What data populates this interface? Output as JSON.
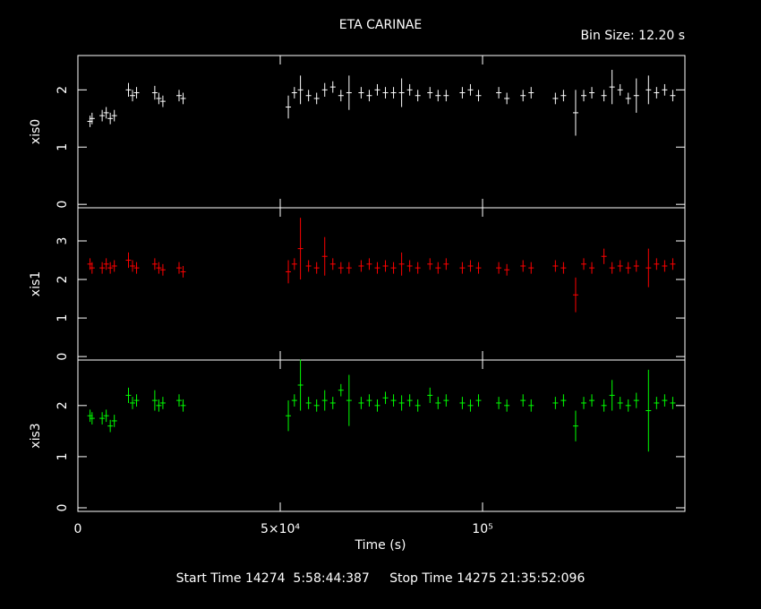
{
  "title": "ETA CARINAE",
  "bin_size": "Bin Size: 12.20 s",
  "x_label": "Time (s)",
  "footer": "Start Time 14274  5:58:44:387     Stop Time 14275 21:35:52:096",
  "chart_data": [
    {
      "type": "scatter",
      "y_label": "xis0",
      "x": [
        3000,
        3500,
        6000,
        7000,
        8000,
        9000,
        12500,
        13500,
        14500,
        19000,
        20000,
        21000,
        25000,
        26000,
        52000,
        53500,
        55000,
        57000,
        59000,
        61000,
        63000,
        65000,
        67000,
        70000,
        72000,
        74000,
        76000,
        78000,
        80000,
        82000,
        84000,
        87000,
        89000,
        91000,
        95000,
        97000,
        99000,
        104000,
        106000,
        110000,
        112000,
        118000,
        120000,
        123000,
        125000,
        127000,
        130000,
        132000,
        134000,
        136000,
        138000,
        141000,
        143000,
        145000,
        147000
      ],
      "series": [
        {
          "color": "#ffffff",
          "values": [
            1.45,
            1.5,
            1.55,
            1.6,
            1.5,
            1.55,
            2.0,
            1.9,
            1.95,
            1.95,
            1.85,
            1.8,
            1.9,
            1.85,
            1.7,
            1.95,
            2.0,
            1.9,
            1.85,
            2.0,
            2.05,
            1.9,
            1.95,
            1.95,
            1.9,
            2.0,
            1.95,
            1.95,
            1.95,
            2.0,
            1.9,
            1.95,
            1.9,
            1.9,
            1.95,
            2.0,
            1.9,
            1.95,
            1.85,
            1.9,
            1.95,
            1.85,
            1.9,
            1.6,
            1.9,
            1.95,
            1.9,
            2.05,
            2.0,
            1.85,
            1.9,
            2.0,
            1.95,
            2.0,
            1.9
          ],
          "errors": [
            0.1,
            0.1,
            0.1,
            0.1,
            0.1,
            0.1,
            0.12,
            0.1,
            0.1,
            0.12,
            0.1,
            0.1,
            0.1,
            0.1,
            0.2,
            0.1,
            0.25,
            0.1,
            0.1,
            0.12,
            0.1,
            0.1,
            0.3,
            0.1,
            0.1,
            0.1,
            0.1,
            0.1,
            0.25,
            0.1,
            0.1,
            0.1,
            0.1,
            0.1,
            0.1,
            0.1,
            0.1,
            0.1,
            0.1,
            0.1,
            0.1,
            0.1,
            0.1,
            0.4,
            0.1,
            0.1,
            0.1,
            0.3,
            0.1,
            0.1,
            0.3,
            0.25,
            0.1,
            0.1,
            0.1
          ]
        }
      ],
      "ylim": [
        -0.06,
        2.6
      ],
      "yticks": [
        0,
        1,
        2
      ]
    },
    {
      "type": "scatter",
      "y_label": "xis1",
      "x": [
        3000,
        3500,
        6000,
        7000,
        8000,
        9000,
        12500,
        13500,
        14500,
        19000,
        20000,
        21000,
        25000,
        26000,
        52000,
        53500,
        55000,
        57000,
        59000,
        61000,
        63000,
        65000,
        67000,
        70000,
        72000,
        74000,
        76000,
        78000,
        80000,
        82000,
        84000,
        87000,
        89000,
        91000,
        95000,
        97000,
        99000,
        104000,
        106000,
        110000,
        112000,
        118000,
        120000,
        123000,
        125000,
        127000,
        130000,
        132000,
        134000,
        136000,
        138000,
        141000,
        143000,
        145000,
        147000
      ],
      "series": [
        {
          "color": "#ff0000",
          "values": [
            2.4,
            2.3,
            2.3,
            2.4,
            2.3,
            2.35,
            2.5,
            2.35,
            2.3,
            2.4,
            2.3,
            2.25,
            2.3,
            2.2,
            2.2,
            2.4,
            2.8,
            2.35,
            2.3,
            2.6,
            2.4,
            2.3,
            2.3,
            2.35,
            2.4,
            2.3,
            2.35,
            2.3,
            2.4,
            2.35,
            2.3,
            2.4,
            2.3,
            2.4,
            2.3,
            2.35,
            2.3,
            2.3,
            2.25,
            2.35,
            2.3,
            2.35,
            2.3,
            1.6,
            2.4,
            2.3,
            2.6,
            2.3,
            2.35,
            2.3,
            2.35,
            2.3,
            2.4,
            2.35,
            2.4
          ],
          "errors": [
            0.15,
            0.15,
            0.15,
            0.15,
            0.15,
            0.15,
            0.2,
            0.15,
            0.15,
            0.15,
            0.15,
            0.15,
            0.15,
            0.15,
            0.3,
            0.15,
            0.8,
            0.15,
            0.15,
            0.5,
            0.15,
            0.15,
            0.15,
            0.15,
            0.15,
            0.15,
            0.15,
            0.15,
            0.3,
            0.15,
            0.15,
            0.15,
            0.15,
            0.15,
            0.15,
            0.15,
            0.15,
            0.15,
            0.15,
            0.15,
            0.15,
            0.15,
            0.15,
            0.45,
            0.15,
            0.15,
            0.2,
            0.15,
            0.15,
            0.15,
            0.15,
            0.5,
            0.15,
            0.15,
            0.15
          ]
        }
      ],
      "ylim": [
        -0.09,
        3.86
      ],
      "yticks": [
        0,
        1,
        2,
        3
      ]
    },
    {
      "type": "scatter",
      "y_label": "xis3",
      "x": [
        3000,
        3500,
        6000,
        7000,
        8000,
        9000,
        12500,
        13500,
        14500,
        19000,
        20000,
        21000,
        25000,
        26000,
        52000,
        53500,
        55000,
        57000,
        59000,
        61000,
        63000,
        65000,
        67000,
        70000,
        72000,
        74000,
        76000,
        78000,
        80000,
        82000,
        84000,
        87000,
        89000,
        91000,
        95000,
        97000,
        99000,
        104000,
        106000,
        110000,
        112000,
        118000,
        120000,
        123000,
        125000,
        127000,
        130000,
        132000,
        134000,
        136000,
        138000,
        141000,
        143000,
        145000,
        147000
      ],
      "series": [
        {
          "color": "#00ff00",
          "values": [
            1.8,
            1.75,
            1.75,
            1.8,
            1.6,
            1.7,
            2.2,
            2.05,
            2.1,
            2.1,
            2.0,
            2.05,
            2.1,
            2.0,
            1.8,
            2.1,
            2.4,
            2.05,
            2.0,
            2.1,
            2.05,
            2.3,
            2.1,
            2.05,
            2.1,
            2.0,
            2.15,
            2.1,
            2.05,
            2.1,
            2.0,
            2.2,
            2.05,
            2.1,
            2.05,
            2.0,
            2.1,
            2.05,
            2.0,
            2.1,
            2.0,
            2.05,
            2.1,
            1.6,
            2.05,
            2.1,
            2.0,
            2.2,
            2.05,
            2.0,
            2.1,
            1.9,
            2.05,
            2.1,
            2.05
          ],
          "errors": [
            0.12,
            0.12,
            0.12,
            0.12,
            0.12,
            0.12,
            0.15,
            0.12,
            0.12,
            0.2,
            0.12,
            0.12,
            0.12,
            0.12,
            0.3,
            0.12,
            0.5,
            0.12,
            0.12,
            0.2,
            0.12,
            0.12,
            0.5,
            0.12,
            0.12,
            0.12,
            0.12,
            0.12,
            0.15,
            0.12,
            0.12,
            0.15,
            0.12,
            0.12,
            0.12,
            0.12,
            0.12,
            0.12,
            0.12,
            0.12,
            0.12,
            0.12,
            0.12,
            0.3,
            0.12,
            0.12,
            0.12,
            0.3,
            0.12,
            0.12,
            0.15,
            0.8,
            0.12,
            0.12,
            0.12
          ]
        }
      ],
      "ylim": [
        -0.07,
        2.89
      ],
      "yticks": [
        0,
        1,
        2
      ],
      "xlim": [
        0,
        150000
      ],
      "xticks": [
        0,
        {
          "value": 50000,
          "label": "5×10⁴"
        },
        {
          "value": 100000,
          "label": "10⁵"
        }
      ]
    }
  ]
}
